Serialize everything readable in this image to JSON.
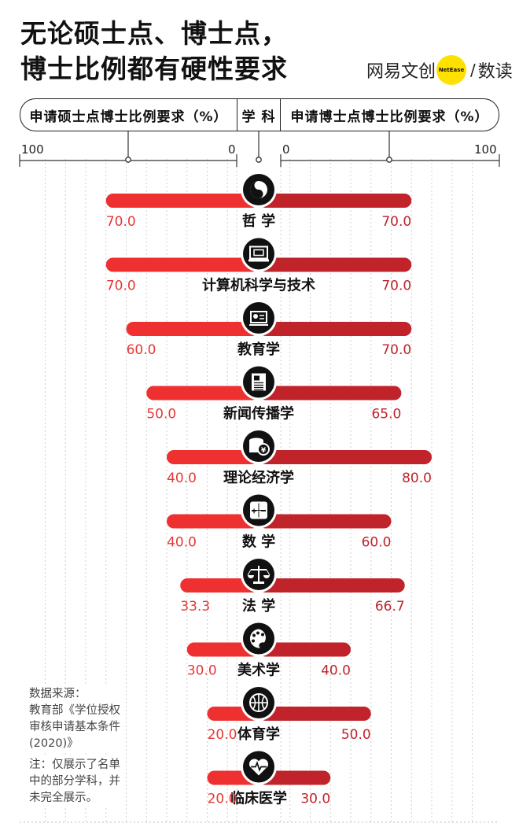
{
  "title": {
    "line1": "无论硕士点、博士点，",
    "line2": "博士比例都有硬性要求"
  },
  "brand": {
    "text1": "网易文创",
    "badge": "NetEase",
    "slash": "/",
    "text2": "数读"
  },
  "header": {
    "left": "申请硕士点博士比例要求（%）",
    "mid": "学 科",
    "right": "申请博士点博士比例要求（%）"
  },
  "ticks": {
    "left_max": "100",
    "left_zero": "0",
    "right_zero": "0",
    "right_max": "100"
  },
  "notes": {
    "source_lines": [
      "数据来源：",
      "教育部《学位授权",
      "审核申请基本条件",
      "(2020)》"
    ],
    "note_lines": [
      "注：仅展示了名单",
      "中的部分学科，并",
      "未完全展示。"
    ]
  },
  "chart_data": {
    "type": "bar",
    "layout": "diverging-butterfly",
    "xlim": [
      0,
      100
    ],
    "colors": {
      "master": "#ef3030",
      "doctor": "#c0232a",
      "icon_bg": "#111111"
    },
    "rows": [
      {
        "subject": "哲 学",
        "icon": "yin-yang-icon",
        "master": 70.0,
        "doctor": 70.0,
        "master_label": "70.0",
        "doctor_label": "70.0"
      },
      {
        "subject": "计算机科学与技术",
        "icon": "computer-icon",
        "master": 70.0,
        "doctor": 70.0,
        "master_label": "70.0",
        "doctor_label": "70.0"
      },
      {
        "subject": "教育学",
        "icon": "teaching-icon",
        "master": 60.0,
        "doctor": 70.0,
        "master_label": "60.0",
        "doctor_label": "70.0"
      },
      {
        "subject": "新闻传播学",
        "icon": "newspaper-icon",
        "master": 50.0,
        "doctor": 65.0,
        "master_label": "50.0",
        "doctor_label": "65.0"
      },
      {
        "subject": "理论经济学",
        "icon": "coins-icon",
        "master": 40.0,
        "doctor": 80.0,
        "master_label": "40.0",
        "doctor_label": "80.0"
      },
      {
        "subject": "数 学",
        "icon": "calculator-icon",
        "master": 40.0,
        "doctor": 60.0,
        "master_label": "40.0",
        "doctor_label": "60.0"
      },
      {
        "subject": "法 学",
        "icon": "scales-icon",
        "master": 33.3,
        "doctor": 66.7,
        "master_label": "33.3",
        "doctor_label": "66.7"
      },
      {
        "subject": "美术学",
        "icon": "palette-icon",
        "master": 30.0,
        "doctor": 40.0,
        "master_label": "30.0",
        "doctor_label": "40.0"
      },
      {
        "subject": "体育学",
        "icon": "basketball-icon",
        "master": 20.0,
        "doctor": 50.0,
        "master_label": "20.0",
        "doctor_label": "50.0"
      },
      {
        "subject": "临床医学",
        "icon": "heartbeat-icon",
        "master": 20.0,
        "doctor": 30.0,
        "master_label": "20.0",
        "doctor_label": "30.0"
      }
    ]
  }
}
